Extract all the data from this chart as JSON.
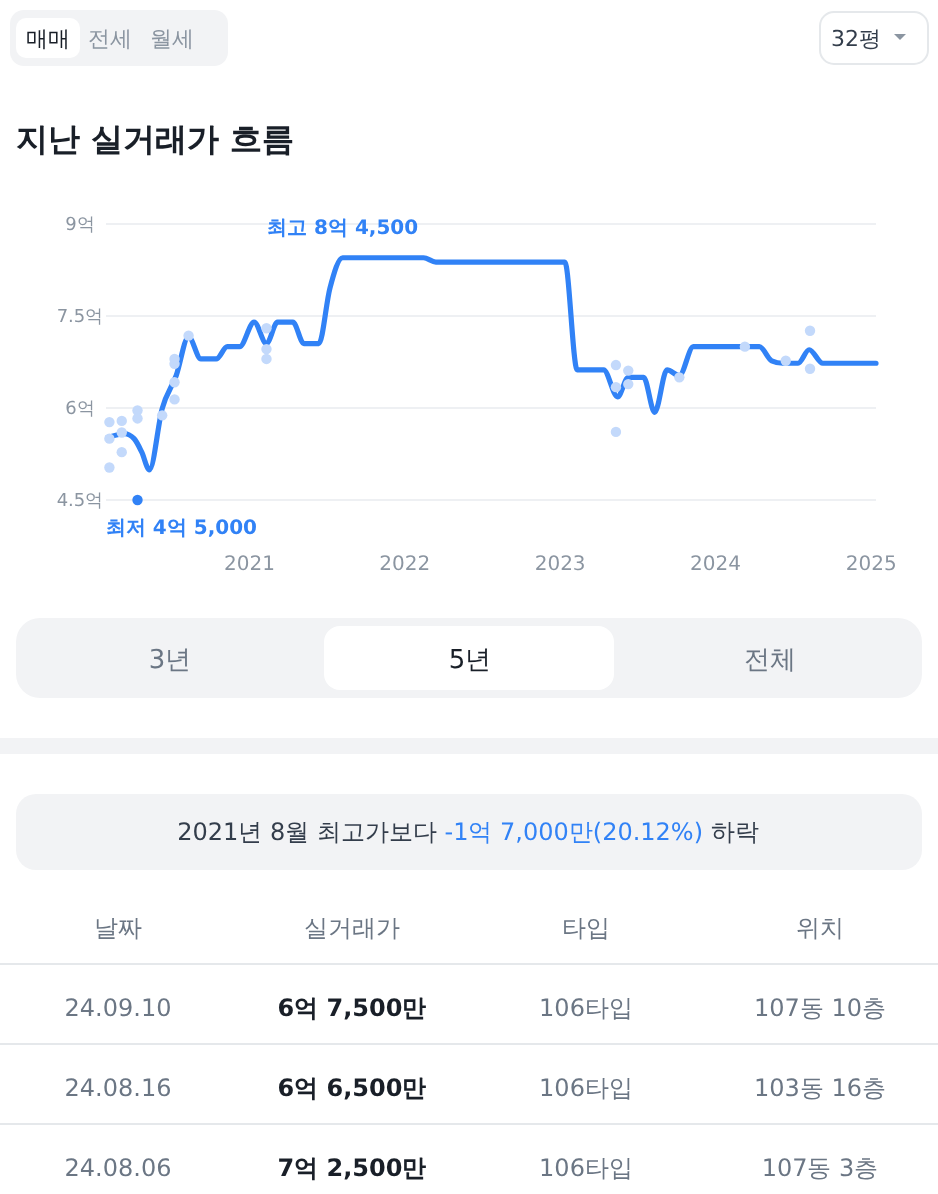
{
  "chart_data": {
    "type": "line",
    "title": "지난 실거래가 흐름",
    "xlim": [
      "2020-01-30",
      "2025-01-12"
    ],
    "xticks": [
      {
        "value": "2021",
        "label": "2021"
      },
      {
        "value": "2022",
        "label": "2022"
      },
      {
        "value": "2023",
        "label": "2023"
      },
      {
        "value": "2024",
        "label": "2024"
      },
      {
        "value": "2025",
        "label": "2025"
      }
    ],
    "ylim": [
      4.5,
      9
    ],
    "yticks": [
      {
        "value": 4.5,
        "label": "4.5억"
      },
      {
        "value": 6,
        "label": "6억"
      },
      {
        "value": 7.5,
        "label": "7.5억"
      },
      {
        "value": 9,
        "label": "9억"
      }
    ],
    "grid": "y",
    "series": [
      {
        "type": "scatter",
        "color": "#c3d9fb",
        "x": [
          "2020-02-07",
          "2020-02-07",
          "2020-02-07",
          "2020-03-07",
          "2020-03-07",
          "2020-03-07",
          "2020-04-13",
          "2020-04-13",
          "2020-06-10",
          "2020-07-09",
          "2020-07-09",
          "2020-07-09",
          "2020-07-09",
          "2020-08-11",
          "2021-02-10",
          "2021-02-10",
          "2021-02-10",
          "2023-05-12",
          "2023-05-12",
          "2023-05-12",
          "2023-06-10",
          "2023-06-10",
          "2023-10-08",
          "2024-03-10",
          "2024-06-14",
          "2024-08-10",
          "2024-08-10"
        ],
        "values": [
          5.77,
          5.5,
          5.03,
          5.79,
          5.6,
          5.28,
          5.96,
          5.83,
          5.88,
          6.14,
          6.42,
          6.72,
          6.8,
          7.18,
          7.3,
          6.96,
          6.8,
          6.7,
          6.34,
          5.61,
          6.39,
          6.61,
          6.5,
          7.0,
          6.77,
          7.26,
          6.64
        ]
      },
      {
        "color": "#3182f6",
        "x": [
          "2020-02-03",
          "2020-03-14",
          "2020-04-05",
          "2020-04-23",
          "2020-05-11",
          "2020-06-10",
          "2020-07-13",
          "2020-08-11",
          "2020-09-09",
          "2020-10-15",
          "2020-11-10",
          "2020-12-09",
          "2021-01-12",
          "2021-02-10",
          "2021-03-08",
          "2021-04-13",
          "2021-05-09",
          "2021-06-13",
          "2021-07-09",
          "2021-08-08",
          "2022-02-14",
          "2022-03-15",
          "2023-01-12",
          "2023-02-10",
          "2023-04-13",
          "2023-05-16",
          "2023-06-10",
          "2023-07-16",
          "2023-08-11",
          "2023-09-09",
          "2023-10-08",
          "2023-11-10",
          "2024-04-13",
          "2024-05-12",
          "2024-06-07",
          "2024-07-13",
          "2024-08-08",
          "2024-09-09",
          "2025-01-12"
        ],
        "values": [
          5.52,
          5.58,
          5.5,
          5.28,
          4.99,
          5.99,
          6.53,
          7.16,
          6.8,
          6.8,
          7.0,
          7.0,
          7.4,
          7.05,
          7.4,
          7.4,
          7.05,
          7.05,
          7.95,
          8.45,
          8.45,
          8.38,
          8.38,
          6.62,
          6.62,
          6.18,
          6.5,
          6.5,
          5.93,
          6.62,
          6.53,
          7.0,
          7.0,
          6.77,
          6.73,
          6.73,
          6.95,
          6.73,
          6.73
        ]
      },
      {
        "type": "scatter",
        "color": "#3182f6",
        "x": [
          "2020-04-13"
        ],
        "values": [
          4.5
        ]
      }
    ],
    "annotations": [
      "매매",
      "전세",
      "월세",
      "32평",
      {
        "text": "최고 8억 4,500",
        "x": "2021-08-08",
        "y": 8.45
      },
      {
        "text": "최저 4억 5,000",
        "x": "2020-04-13",
        "y": 4.5
      },
      "3년",
      "5년",
      "전체",
      "2021년 8월 최고가보다",
      "-1억 7,000만(20.12%)",
      "하락",
      "날짜",
      "실거래가",
      "타입",
      "위치",
      "24.09.10",
      "6억 7,500만",
      "106타입",
      "107동 10층",
      "24.08.16",
      "6억 6,500만",
      "106타입",
      "103동 16층",
      "24.08.06",
      "7억 2,500만",
      "106타입",
      "107동 3층"
    ]
  }
}
